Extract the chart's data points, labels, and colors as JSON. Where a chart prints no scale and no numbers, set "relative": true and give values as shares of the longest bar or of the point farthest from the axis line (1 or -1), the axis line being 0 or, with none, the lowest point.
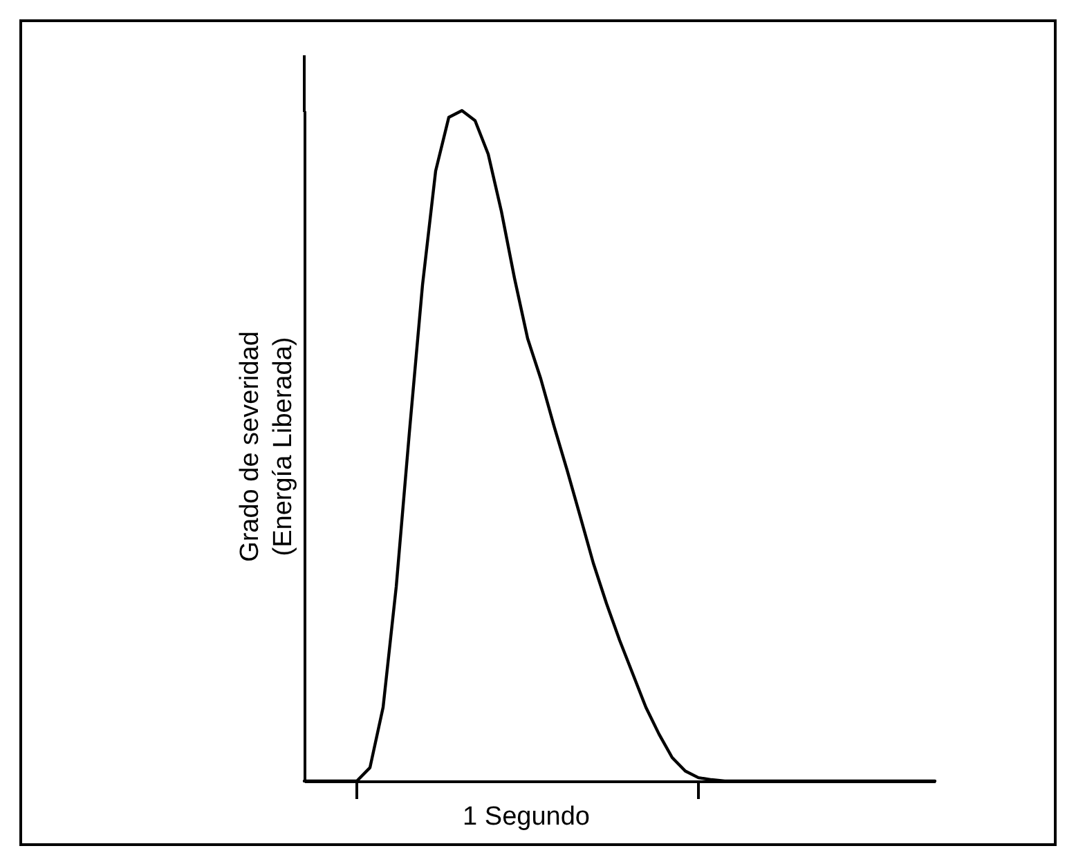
{
  "chart_data": {
    "type": "line",
    "relative": true,
    "xlabel": "1 Segundo",
    "ylabel": "Grado de severidad\n(Energía Liberada)",
    "legend": false,
    "categories": [
      null,
      null,
      null,
      null,
      null,
      null,
      null,
      null,
      null,
      null,
      null,
      null,
      null,
      null,
      null,
      null,
      null,
      null,
      null,
      null,
      null,
      null,
      null,
      null,
      null,
      null,
      null,
      null,
      null,
      null,
      null,
      null,
      null,
      null,
      null,
      null,
      null,
      null,
      null,
      null,
      null,
      null,
      null,
      null,
      null,
      null,
      null,
      null,
      null
    ],
    "series": [
      {
        "color": "#000000",
        "values": [
          0,
          0,
          0,
          0,
          0,
          0.02,
          0.11,
          0.29,
          0.52,
          0.74,
          0.91,
          0.99,
          1,
          0.985,
          0.935,
          0.85,
          0.75,
          0.66,
          0.6,
          0.53,
          0.464,
          0.395,
          0.325,
          0.265,
          0.21,
          0.16,
          0.11,
          0.07,
          0.035,
          0.015,
          0.005,
          0.002,
          0,
          0,
          0,
          0,
          0,
          0,
          0,
          0,
          0,
          0,
          0,
          0,
          0,
          0,
          0,
          0,
          0
        ]
      }
    ]
  }
}
